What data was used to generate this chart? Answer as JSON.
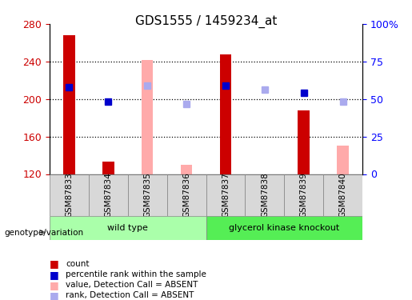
{
  "title": "GDS1555 / 1459234_at",
  "samples": [
    "GSM87833",
    "GSM87834",
    "GSM87835",
    "GSM87836",
    "GSM87837",
    "GSM87838",
    "GSM87839",
    "GSM87840"
  ],
  "groups": [
    "wild type",
    "wild type",
    "wild type",
    "wild type",
    "glycerol kinase knockout",
    "glycerol kinase knockout",
    "glycerol kinase knockout",
    "glycerol kinase knockout"
  ],
  "red_bars": [
    268,
    133,
    null,
    null,
    248,
    null,
    188,
    null
  ],
  "pink_bars": [
    null,
    null,
    242,
    130,
    null,
    null,
    null,
    150
  ],
  "blue_squares": [
    213,
    197,
    null,
    null,
    214,
    null,
    207,
    null
  ],
  "light_blue_squares": [
    null,
    null,
    214,
    195,
    null,
    210,
    null,
    197
  ],
  "ylim": [
    120,
    280
  ],
  "y_ticks_left": [
    120,
    160,
    200,
    240,
    280
  ],
  "y_ticks_right": [
    0,
    25,
    50,
    75,
    100
  ],
  "right_axis_values": [
    120,
    160,
    200,
    240,
    280
  ],
  "right_axis_labels": [
    "0",
    "25",
    "50",
    "75",
    "100%"
  ],
  "bar_bottom": 120,
  "group_colors": [
    "#90ee90",
    "#90ee90",
    "#90ee90",
    "#90ee90",
    "#00dd00",
    "#00dd00",
    "#00dd00",
    "#00dd00"
  ],
  "wild_type_color": "#b0f0b0",
  "knockout_color": "#44dd44",
  "red_color": "#cc0000",
  "pink_color": "#ffaaaa",
  "blue_color": "#0000cc",
  "light_blue_color": "#aaaaee",
  "grid_color": "#000000",
  "bg_color": "#f0f0f0",
  "plot_bg": "#ffffff"
}
